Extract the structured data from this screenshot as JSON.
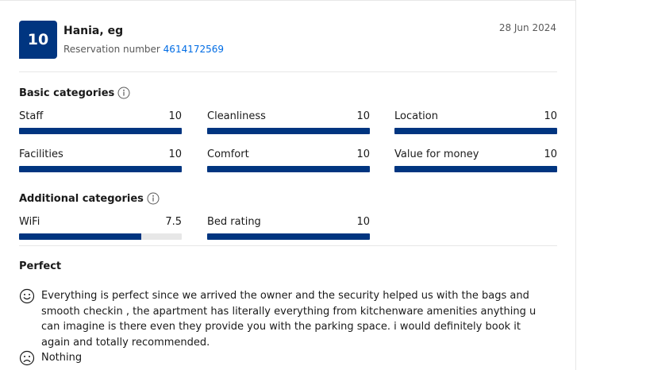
{
  "review": {
    "score": "10",
    "guest_name": "Hania, eg",
    "reservation_label": "Reservation number",
    "reservation_number": "4614172569",
    "date": "28 Jun 2024"
  },
  "basic_categories": {
    "title": "Basic categories",
    "items": [
      {
        "label": "Staff",
        "score": "10",
        "value": 10
      },
      {
        "label": "Cleanliness",
        "score": "10",
        "value": 10
      },
      {
        "label": "Location",
        "score": "10",
        "value": 10
      },
      {
        "label": "Facilities",
        "score": "10",
        "value": 10
      },
      {
        "label": "Comfort",
        "score": "10",
        "value": 10
      },
      {
        "label": "Value for money",
        "score": "10",
        "value": 10
      }
    ]
  },
  "additional_categories": {
    "title": "Additional categories",
    "items": [
      {
        "label": "WiFi",
        "score": "7.5",
        "value": 7.5
      },
      {
        "label": "Bed rating",
        "score": "10",
        "value": 10
      }
    ]
  },
  "review_body": {
    "title": "Perfect",
    "positive": "Everything is perfect since we arrived the owner and the security helped us with the bags and smooth checkin , the apartment has literally everything from kitchenware amenities anything u can imagine is there even they provide you with the parking space. i would definitely book it again and totally recommended.",
    "negative": "Nothing"
  },
  "icons": {
    "info": "info-icon",
    "positive": "smiley-happy-icon",
    "negative": "smiley-sad-icon"
  },
  "colors": {
    "brand": "#003580",
    "link": "#006ce4",
    "track": "#e7e7e7"
  }
}
